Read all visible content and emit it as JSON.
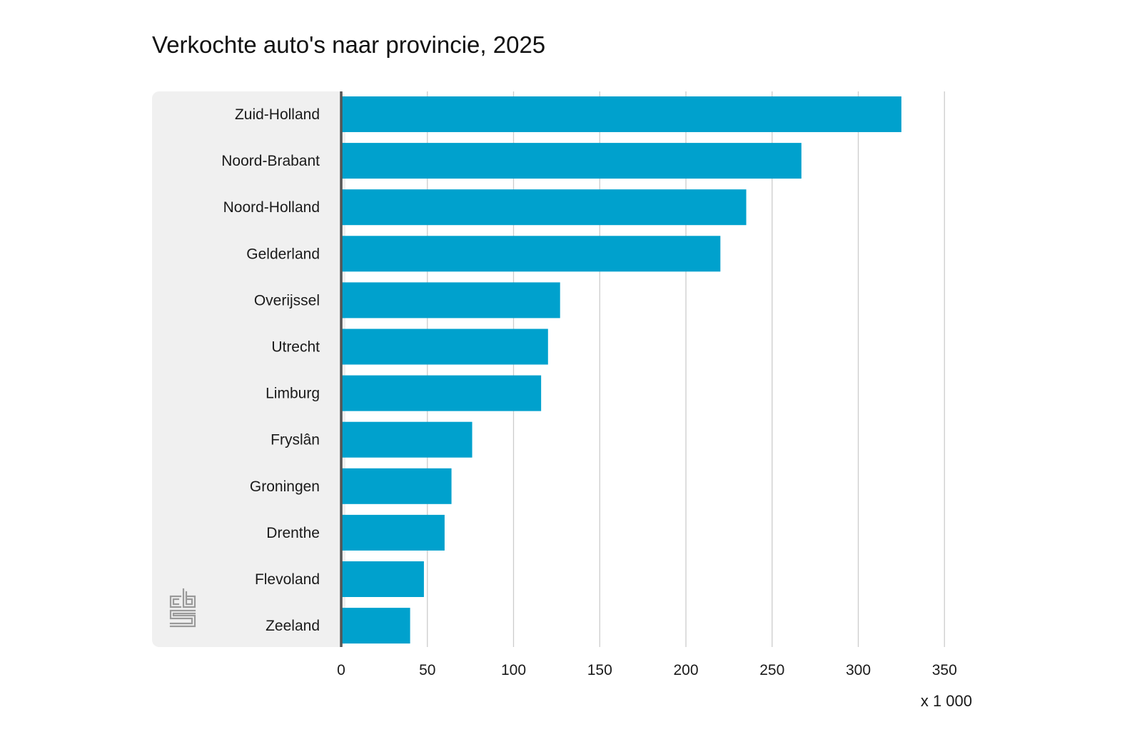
{
  "chart_data": {
    "type": "bar",
    "orientation": "horizontal",
    "title": "Verkochte auto's naar provincie, 2025",
    "unit_label": "x 1 000",
    "categories": [
      "Zuid-Holland",
      "Noord-Brabant",
      "Noord-Holland",
      "Gelderland",
      "Overijssel",
      "Utrecht",
      "Limburg",
      "Fryslân",
      "Groningen",
      "Drenthe",
      "Flevoland",
      "Zeeland"
    ],
    "values": [
      325,
      267,
      235,
      220,
      127,
      120,
      116,
      76,
      64,
      60,
      48,
      40
    ],
    "xlim": [
      0,
      350
    ],
    "x_ticks": [
      "0",
      "50",
      "100",
      "150",
      "200",
      "250",
      "300",
      "350"
    ],
    "grid": true,
    "bar_color": "#00a1cd",
    "label_panel_color": "#f0f0f0",
    "grid_color": "#cccccc",
    "axis_color": "#555555",
    "logo_icon": "cbs-logo-icon"
  }
}
